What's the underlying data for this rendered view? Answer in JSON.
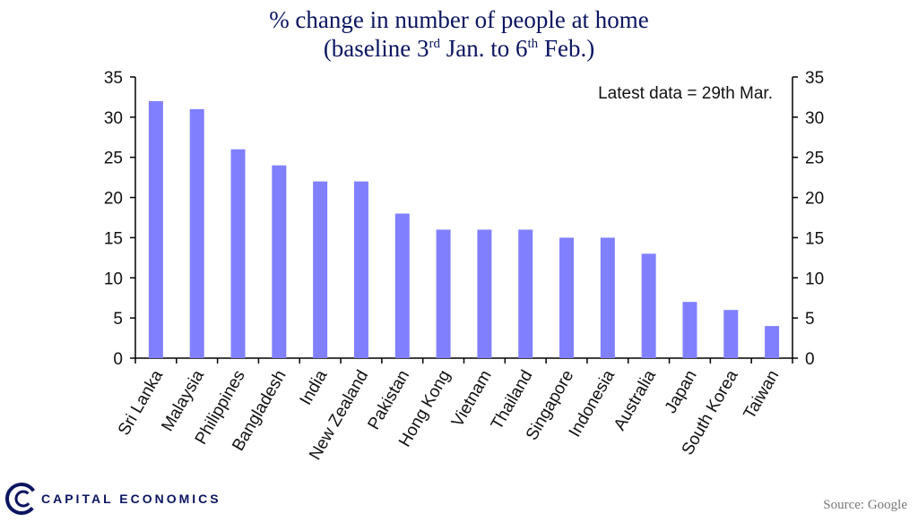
{
  "chart_data": {
    "type": "bar",
    "title_line1": "% change in number of people at home",
    "title_line2_a": "(baseline 3",
    "title_line2_sup1": "rd",
    "title_line2_b": " Jan. to 6",
    "title_line2_sup2": "th",
    "title_line2_c": " Feb.)",
    "annotation": "Latest data = 29th  Mar.",
    "categories": [
      "Sri Lanka",
      "Malaysia",
      "Philippines",
      "Bangladesh",
      "India",
      "New Zealand",
      "Pakistan",
      "Hong Kong",
      "Vietnam",
      "Thailand",
      "Singapore",
      "Indonesia",
      "Australia",
      "Japan",
      "South Korea",
      "Taiwan"
    ],
    "values": [
      32,
      31,
      26,
      24,
      22,
      22,
      18,
      16,
      16,
      16,
      15,
      15,
      13,
      7,
      6,
      4
    ],
    "ylim": [
      0,
      35
    ],
    "yticks": [
      0,
      5,
      10,
      15,
      20,
      25,
      30,
      35
    ],
    "ytick_labels": [
      "0",
      "5",
      "10",
      "15",
      "20",
      "25",
      "30",
      "35"
    ],
    "bar_color": "#8080ff",
    "grid": false,
    "dual_y_axis": true
  },
  "footer": {
    "logo_text": "CAPITAL ECONOMICS",
    "source": "Source: Google"
  },
  "colors": {
    "title": "#0b1560",
    "logo": "#0b1560"
  }
}
